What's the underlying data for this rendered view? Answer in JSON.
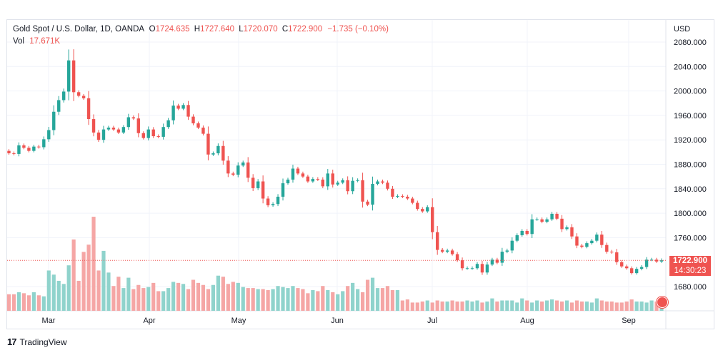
{
  "legend": {
    "symbol": "Gold Spot / U.S. Dollar, 1D, OANDA",
    "o_label": "O",
    "o_value": "1724.635",
    "h_label": "H",
    "h_value": "1727.640",
    "l_label": "L",
    "l_value": "1720.070",
    "c_label": "C",
    "c_value": "1722.900",
    "change": "−1.735 (−0.10%)",
    "vol_label": "Vol",
    "vol_value": "17.671K"
  },
  "axis": {
    "currency": "USD",
    "price_ticks": [
      2080,
      2040,
      2000,
      1960,
      1920,
      1880,
      1840,
      1800,
      1760,
      1680
    ],
    "price_tick_labels": [
      "2080.000",
      "2040.000",
      "2000.000",
      "1960.000",
      "1920.000",
      "1880.000",
      "1840.000",
      "1800.000",
      "1760.000",
      "1680.000"
    ],
    "months": [
      "Mar",
      "Apr",
      "May",
      "Jun",
      "Jul",
      "Aug",
      "Sep"
    ]
  },
  "current_price": {
    "value": 1722.9,
    "label": "1722.900",
    "countdown": "14:30:23"
  },
  "brand": {
    "name": "TradingView"
  },
  "colors": {
    "up": "#26a69a",
    "down": "#ef5350",
    "vol_up": "#8fd3cc",
    "vol_down": "#f5a6a5",
    "grid": "#f0f3fa"
  },
  "chart_data": {
    "type": "candlestick",
    "title": "Gold Spot / U.S. Dollar, 1D, OANDA",
    "ylim": [
      1660,
      2100
    ],
    "x_start": "2022-02-18",
    "closes": [
      1898,
      1897,
      1911,
      1907,
      1902,
      1909,
      1908,
      1921,
      1936,
      1966,
      1985,
      1999,
      2050,
      1998,
      1992,
      1988,
      1954,
      1932,
      1920,
      1937,
      1940,
      1937,
      1932,
      1941,
      1957,
      1955,
      1931,
      1923,
      1937,
      1926,
      1925,
      1941,
      1952,
      1976,
      1971,
      1977,
      1958,
      1947,
      1940,
      1930,
      1896,
      1898,
      1910,
      1886,
      1865,
      1863,
      1878,
      1883,
      1858,
      1841,
      1852,
      1824,
      1813,
      1815,
      1827,
      1849,
      1855,
      1873,
      1865,
      1860,
      1852,
      1856,
      1855,
      1844,
      1865,
      1847,
      1850,
      1854,
      1836,
      1853,
      1854,
      1819,
      1814,
      1848,
      1852,
      1850,
      1840,
      1827,
      1828,
      1827,
      1824,
      1817,
      1807,
      1803,
      1810,
      1769,
      1740,
      1737,
      1739,
      1733,
      1723,
      1710,
      1710,
      1710,
      1717,
      1703,
      1716,
      1724,
      1719,
      1737,
      1739,
      1755,
      1764,
      1771,
      1766,
      1790,
      1790,
      1786,
      1790,
      1799,
      1791,
      1774,
      1777,
      1762,
      1747,
      1745,
      1751,
      1755,
      1765,
      1748,
      1737,
      1736,
      1720,
      1713,
      1710,
      1702,
      1709,
      1712,
      1724,
      1724,
      1721,
      1723
    ],
    "volumes": [
      16,
      16,
      18,
      17,
      15,
      18,
      15,
      14,
      39,
      35,
      29,
      26,
      44,
      69,
      29,
      57,
      64,
      91,
      39,
      58,
      37,
      24,
      33,
      22,
      32,
      21,
      25,
      22,
      23,
      27,
      19,
      19,
      22,
      28,
      27,
      26,
      21,
      30,
      27,
      25,
      21,
      25,
      34,
      33,
      26,
      28,
      27,
      23,
      22,
      22,
      21,
      21,
      20,
      21,
      24,
      23,
      22,
      24,
      22,
      21,
      17,
      20,
      19,
      24,
      20,
      18,
      16,
      19,
      24,
      27,
      21,
      18,
      30,
      32,
      22,
      22,
      24,
      20,
      20,
      10,
      11,
      8,
      8,
      9,
      10,
      8,
      10,
      9,
      9,
      10,
      9,
      9,
      10,
      9,
      10,
      8,
      9,
      12,
      9,
      10,
      10,
      10,
      8,
      12,
      10,
      8,
      10,
      9,
      10,
      11,
      10,
      9,
      10,
      8,
      10,
      9,
      9,
      8,
      12,
      10,
      9,
      9,
      8,
      8,
      9,
      11,
      9,
      9,
      8,
      10,
      9,
      6
    ]
  }
}
